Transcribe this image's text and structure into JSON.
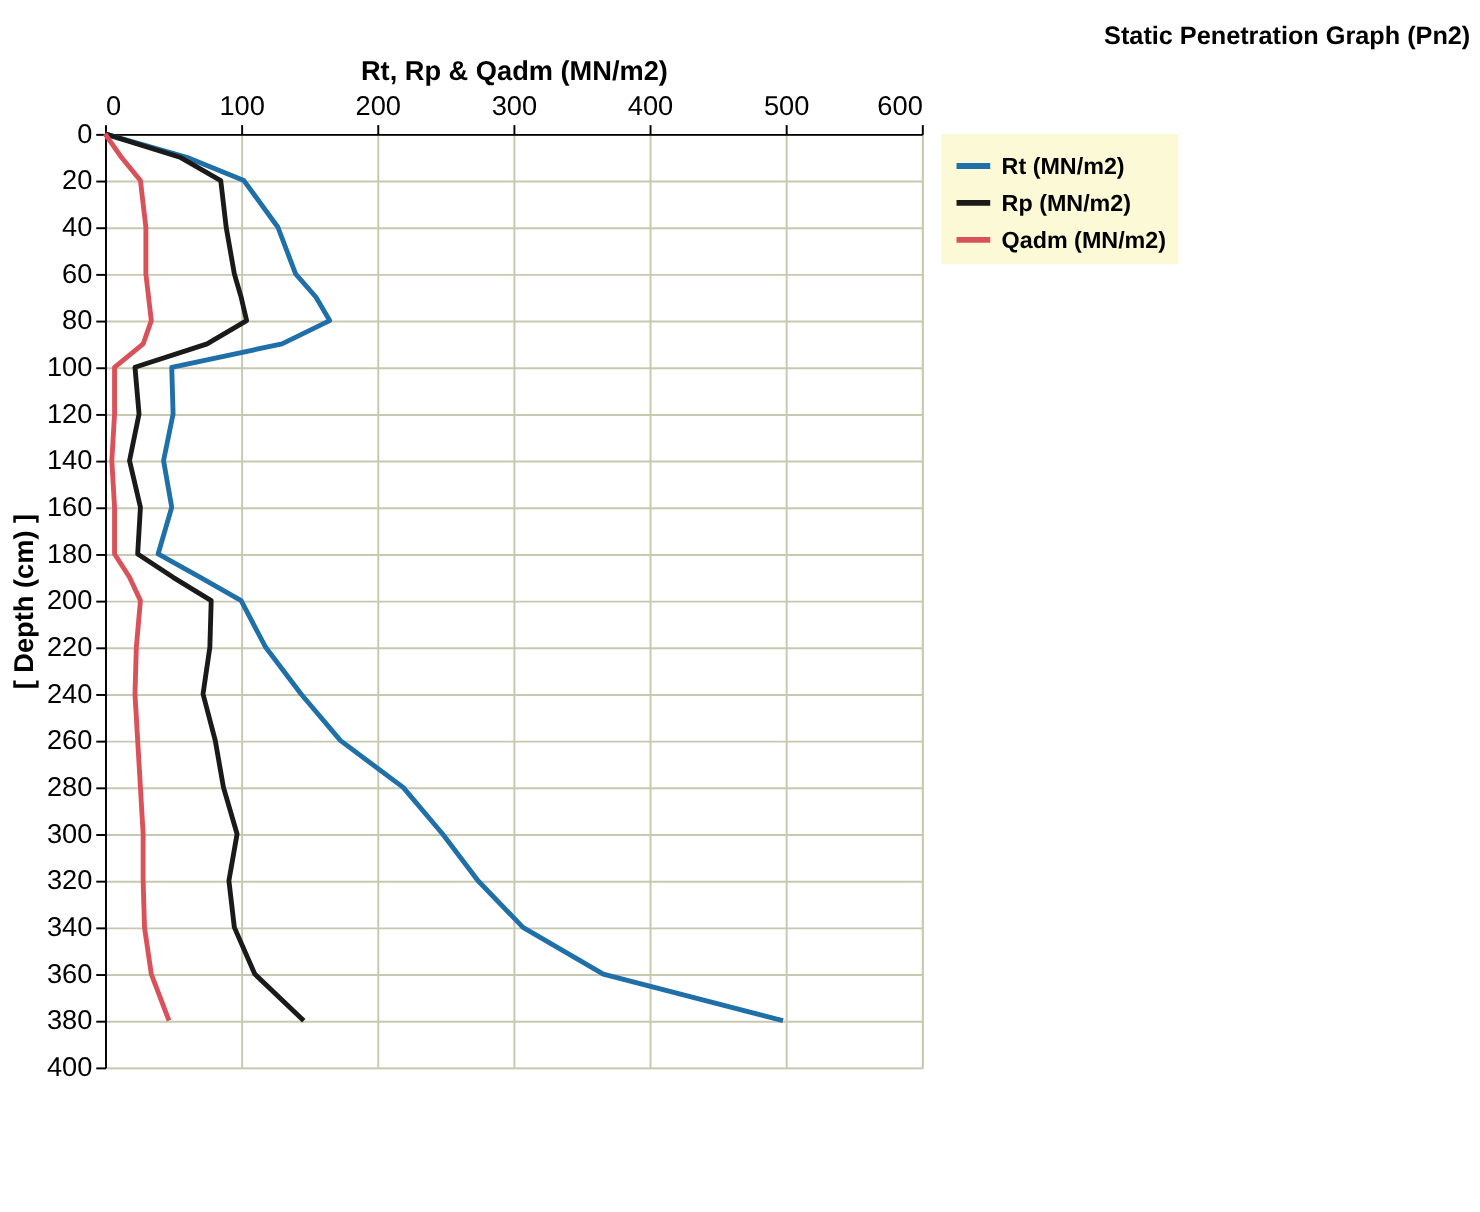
{
  "chart_data": {
    "type": "line",
    "title": "Static Penetration Graph (Pn2)",
    "xlabel": "Rt, Rp & Qadm (MN/m2)",
    "ylabel": "[ Depth (cm) ]",
    "orientation": "horizontal",
    "x": [
      0,
      10,
      20,
      40,
      60,
      70,
      80,
      90,
      100,
      120,
      140,
      160,
      180,
      190,
      200,
      220,
      240,
      260,
      280,
      300,
      320,
      340,
      360,
      380
    ],
    "series": [
      {
        "name": "Rt (MN/m2)",
        "color": "#1f6fa8",
        "values": [
          0,
          60,
          102,
          127,
          140,
          155,
          165,
          130,
          49,
          50,
          43,
          49,
          39,
          70,
          100,
          118,
          144,
          173,
          219,
          248,
          274,
          307,
          366,
          498
        ]
      },
      {
        "name": "Rp (MN/m2)",
        "color": "#1a1a1a",
        "values": [
          0,
          55,
          85,
          89,
          95,
          100,
          104,
          75,
          22,
          25,
          18,
          26,
          24,
          50,
          78,
          77,
          72,
          81,
          87,
          97,
          91,
          95,
          110,
          146
        ]
      },
      {
        "name": "Qadm (MN/m2)",
        "color": "#d9525a",
        "values": [
          0,
          12,
          26,
          30,
          30,
          32,
          34,
          28,
          7,
          7,
          5,
          7,
          7,
          18,
          26,
          23,
          22,
          24,
          26,
          28,
          28,
          29,
          34,
          47
        ]
      }
    ],
    "xlim": [
      0,
      600
    ],
    "xticks": [
      0,
      100,
      200,
      300,
      400,
      500,
      600
    ],
    "ylim": [
      400,
      0
    ],
    "yticks": [
      0,
      20,
      40,
      60,
      80,
      100,
      120,
      140,
      160,
      180,
      200,
      220,
      240,
      260,
      280,
      300,
      320,
      340,
      360,
      380,
      400
    ],
    "grid": true,
    "legend": "right",
    "line_style": "solid",
    "marker": "none"
  }
}
